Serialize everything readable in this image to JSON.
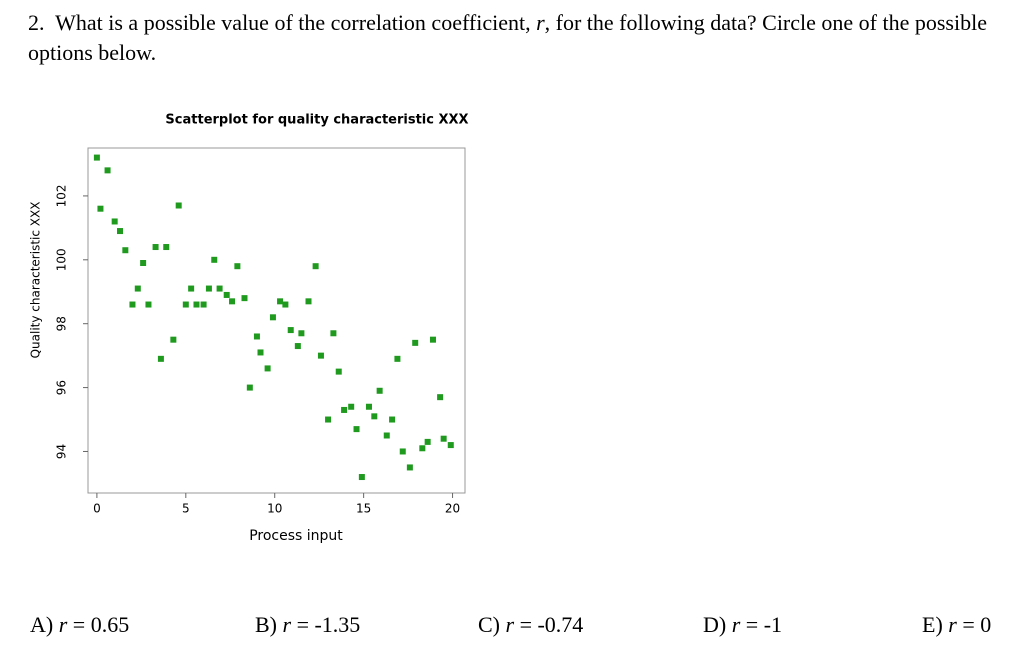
{
  "question": {
    "number": "2.",
    "text_before": "What is a possible value of the correlation coefficient,",
    "variable": "r",
    "text_after": ", for the following data? Circle one of the possible options below."
  },
  "chart_data": {
    "type": "scatter",
    "title": "Scatterplot for quality characteristic XXX",
    "xlabel": "Process input",
    "ylabel": "Quality characteristic XXX",
    "x": [
      0.0,
      0.6,
      0.2,
      1.0,
      1.3,
      1.6,
      2.6,
      2.3,
      2.0,
      2.9,
      3.3,
      3.9,
      3.6,
      4.3,
      4.6,
      5.0,
      5.3,
      5.6,
      6.0,
      6.3,
      6.6,
      6.9,
      7.3,
      7.6,
      7.9,
      8.3,
      8.6,
      9.0,
      9.2,
      9.6,
      9.9,
      10.3,
      10.6,
      10.9,
      11.3,
      11.5,
      11.9,
      12.3,
      12.6,
      13.3,
      13.6,
      13.0,
      13.9,
      14.3,
      14.6,
      14.9,
      15.3,
      15.6,
      15.9,
      16.3,
      16.6,
      16.9,
      17.2,
      17.6,
      17.9,
      18.3,
      18.6,
      18.9,
      19.3,
      19.5,
      19.9
    ],
    "values": [
      103.2,
      102.8,
      101.6,
      101.2,
      100.9,
      100.3,
      99.9,
      99.1,
      98.6,
      98.6,
      100.4,
      100.4,
      96.9,
      97.5,
      101.7,
      98.6,
      99.1,
      98.6,
      98.6,
      99.1,
      100.0,
      99.1,
      98.9,
      98.7,
      99.8,
      98.8,
      96.0,
      97.6,
      97.1,
      96.6,
      98.2,
      98.7,
      98.6,
      97.8,
      97.3,
      97.7,
      98.7,
      99.8,
      97.0,
      97.7,
      96.5,
      95.0,
      95.3,
      95.4,
      94.7,
      93.2,
      95.4,
      95.1,
      95.9,
      94.5,
      95.0,
      96.9,
      94.0,
      93.5,
      97.4,
      94.1,
      94.3,
      97.5,
      95.7,
      94.4,
      94.2
    ],
    "color": "#1f9a1f",
    "xlim": [
      -0.5,
      20.7
    ],
    "ylim": [
      92.7,
      103.5
    ],
    "xticks": [
      0,
      5,
      10,
      15,
      20
    ],
    "yticks": [
      94,
      96,
      98,
      100,
      102
    ]
  },
  "options": [
    {
      "letter": "A)",
      "variable": "r",
      "rest": "= 0.65"
    },
    {
      "letter": "B)",
      "variable": "r",
      "rest": "= -1.35"
    },
    {
      "letter": "C)",
      "variable": "r",
      "rest": "= -0.74"
    },
    {
      "letter": "D)",
      "variable": "r",
      "rest": "= -1"
    },
    {
      "letter": "E)",
      "variable": "r",
      "rest": "= 0"
    }
  ]
}
